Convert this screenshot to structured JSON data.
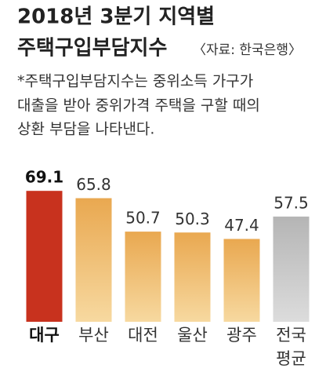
{
  "chart_data": {
    "type": "bar",
    "title_lines": [
      "2018년 3분기 지역별",
      "주택구입부담지수"
    ],
    "source": "〈자료: 한국은행〉",
    "note_lines": [
      "*주택구입부담지수는 중위소득 가구가",
      "대출을 받아 중위가격 주택을 구할 때의",
      "상환 부담을 나타낸다."
    ],
    "categories": [
      "대구",
      "부산",
      "대전",
      "울산",
      "광주",
      "전국 평균"
    ],
    "values": [
      69.1,
      65.8,
      50.7,
      50.3,
      47.4,
      57.5
    ],
    "colors": [
      "#c8321e",
      "#f2b865",
      "#f2b865",
      "#f2b865",
      "#f2b865",
      "#bdbdbd"
    ],
    "highlight_index": 0,
    "ylim": [
      10,
      72
    ]
  }
}
